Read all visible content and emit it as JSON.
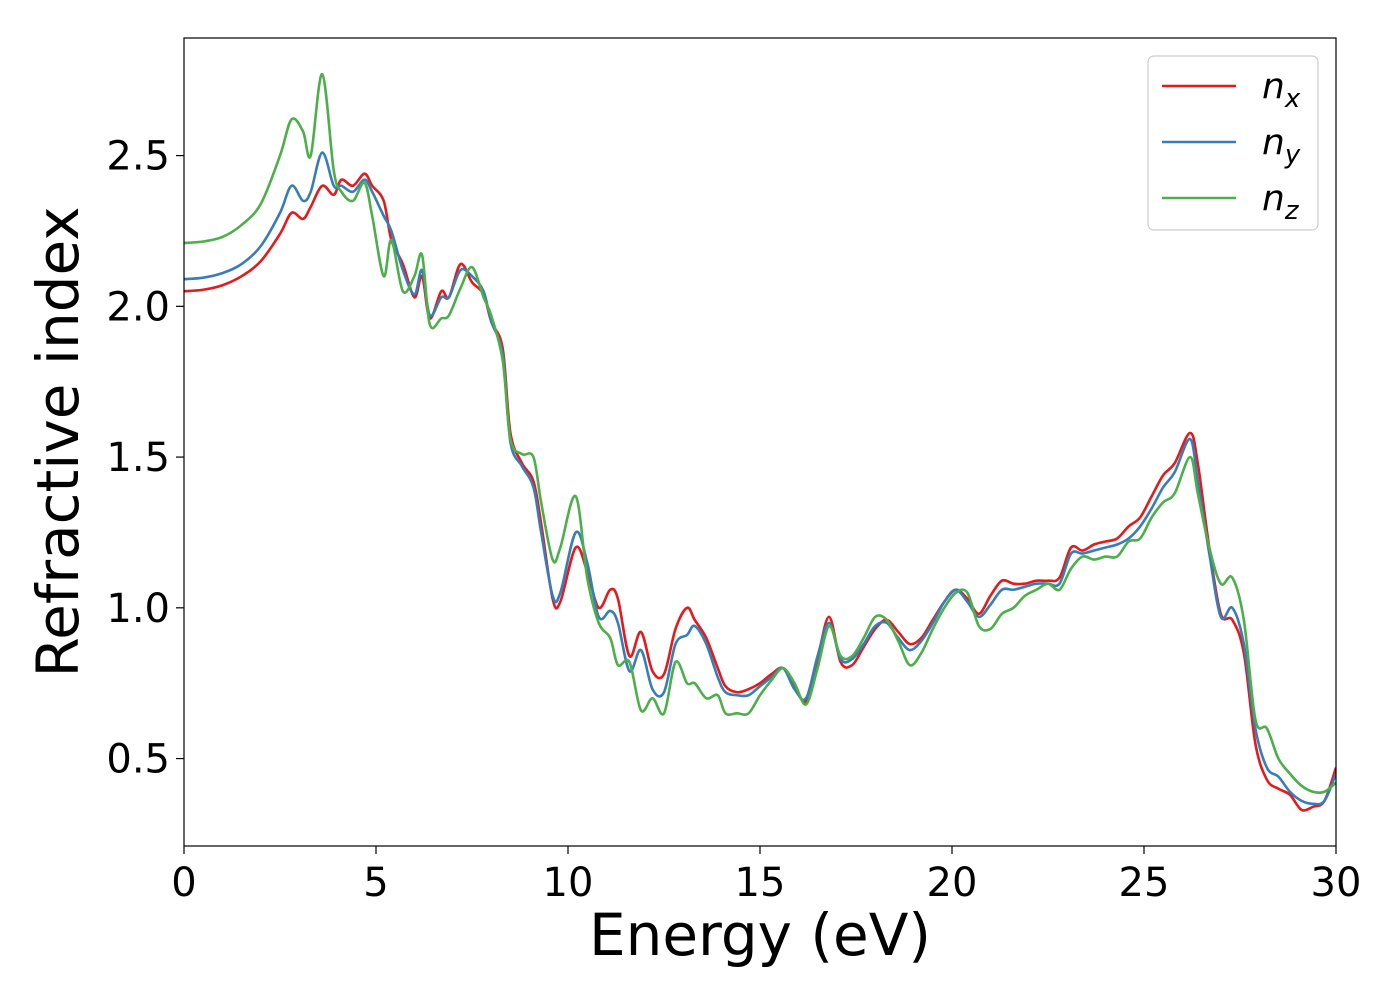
{
  "chart_data": {
    "type": "line",
    "title": "",
    "xlabel": "Energy (eV)",
    "ylabel": "Refractive index",
    "xlim": [
      0,
      30
    ],
    "ylim": [
      0.21,
      2.89
    ],
    "xticks": [
      0,
      5,
      10,
      15,
      20,
      25,
      30
    ],
    "yticks": [
      0.5,
      1.0,
      1.5,
      2.0,
      2.5
    ],
    "xtick_labels": [
      "0",
      "5",
      "10",
      "15",
      "20",
      "25",
      "30"
    ],
    "ytick_labels": [
      "0.5",
      "1.0",
      "1.5",
      "2.0",
      "2.5"
    ],
    "grid": false,
    "legend_position": "top-right",
    "series": [
      {
        "name": "n",
        "subscript": "x",
        "color": "#e41a1c",
        "x": [
          0,
          0.5,
          1,
          1.5,
          2,
          2.5,
          2.8,
          3.1,
          3.3,
          3.6,
          3.9,
          4.1,
          4.4,
          4.7,
          4.9,
          5.2,
          5.4,
          5.7,
          6,
          6.2,
          6.4,
          6.7,
          6.9,
          7.2,
          7.5,
          7.8,
          8,
          8.3,
          8.5,
          8.8,
          9.1,
          9.3,
          9.6,
          9.8,
          10.2,
          10.5,
          10.8,
          11.1,
          11.3,
          11.6,
          11.9,
          12.2,
          12.5,
          12.8,
          13.1,
          13.3,
          13.6,
          13.9,
          14.1,
          14.4,
          14.7,
          15,
          15.3,
          15.6,
          15.9,
          16.2,
          16.5,
          16.8,
          17.1,
          17.4,
          17.7,
          18,
          18.3,
          18.6,
          18.9,
          19.2,
          19.5,
          19.8,
          20.1,
          20.4,
          20.7,
          21,
          21.3,
          21.6,
          21.9,
          22.2,
          22.5,
          22.8,
          23.1,
          23.4,
          23.7,
          24,
          24.3,
          24.6,
          24.9,
          25.2,
          25.5,
          25.8,
          26.2,
          26.4,
          26.7,
          27,
          27.3,
          27.6,
          27.9,
          28.2,
          28.5,
          28.8,
          29.1,
          29.4,
          29.7,
          30
        ],
        "y": [
          2.05,
          2.055,
          2.07,
          2.1,
          2.15,
          2.24,
          2.31,
          2.29,
          2.33,
          2.4,
          2.37,
          2.42,
          2.4,
          2.44,
          2.4,
          2.35,
          2.22,
          2.14,
          2.03,
          2.1,
          1.96,
          2.05,
          2.03,
          2.14,
          2.08,
          2.04,
          1.95,
          1.86,
          1.58,
          1.48,
          1.42,
          1.28,
          1.03,
          1.02,
          1.2,
          1.12,
          1.0,
          1.06,
          1.03,
          0.84,
          0.92,
          0.79,
          0.78,
          0.93,
          1.0,
          0.96,
          0.9,
          0.8,
          0.74,
          0.72,
          0.73,
          0.75,
          0.78,
          0.8,
          0.74,
          0.69,
          0.83,
          0.97,
          0.82,
          0.81,
          0.87,
          0.93,
          0.96,
          0.92,
          0.88,
          0.9,
          0.96,
          1.02,
          1.06,
          1.03,
          0.98,
          1.04,
          1.09,
          1.08,
          1.08,
          1.09,
          1.09,
          1.1,
          1.2,
          1.19,
          1.21,
          1.22,
          1.23,
          1.27,
          1.3,
          1.37,
          1.44,
          1.48,
          1.58,
          1.48,
          1.2,
          0.98,
          0.96,
          0.85,
          0.55,
          0.43,
          0.4,
          0.38,
          0.33,
          0.34,
          0.36,
          0.47
        ]
      },
      {
        "name": "n",
        "subscript": "y",
        "color": "#377eb8",
        "x": [
          0,
          0.5,
          1,
          1.5,
          2,
          2.5,
          2.8,
          3.1,
          3.3,
          3.6,
          3.9,
          4.1,
          4.4,
          4.7,
          4.9,
          5.2,
          5.4,
          5.7,
          6,
          6.2,
          6.4,
          6.7,
          6.9,
          7.2,
          7.5,
          7.8,
          8,
          8.3,
          8.5,
          8.8,
          9.1,
          9.3,
          9.6,
          9.8,
          10.2,
          10.5,
          10.8,
          11.1,
          11.3,
          11.6,
          11.9,
          12.2,
          12.5,
          12.8,
          13.1,
          13.3,
          13.6,
          13.9,
          14.1,
          14.4,
          14.7,
          15,
          15.3,
          15.6,
          15.9,
          16.2,
          16.5,
          16.8,
          17.1,
          17.4,
          17.7,
          18,
          18.3,
          18.6,
          18.9,
          19.2,
          19.5,
          19.8,
          20.1,
          20.4,
          20.7,
          21,
          21.3,
          21.6,
          21.9,
          22.2,
          22.5,
          22.8,
          23.1,
          23.4,
          23.7,
          24,
          24.3,
          24.6,
          24.9,
          25.2,
          25.5,
          25.8,
          26.2,
          26.4,
          26.7,
          27,
          27.3,
          27.6,
          27.9,
          28.2,
          28.5,
          28.8,
          29.1,
          29.4,
          29.7,
          30
        ],
        "y": [
          2.09,
          2.095,
          2.11,
          2.14,
          2.2,
          2.31,
          2.4,
          2.35,
          2.38,
          2.51,
          2.4,
          2.4,
          2.38,
          2.42,
          2.38,
          2.3,
          2.25,
          2.12,
          2.04,
          2.12,
          1.97,
          2.03,
          2.03,
          2.12,
          2.1,
          2.05,
          1.95,
          1.84,
          1.55,
          1.47,
          1.4,
          1.25,
          1.04,
          1.05,
          1.25,
          1.15,
          0.97,
          0.99,
          0.95,
          0.79,
          0.86,
          0.73,
          0.72,
          0.88,
          0.91,
          0.94,
          0.88,
          0.77,
          0.72,
          0.71,
          0.71,
          0.74,
          0.77,
          0.8,
          0.73,
          0.7,
          0.84,
          0.95,
          0.83,
          0.83,
          0.88,
          0.94,
          0.95,
          0.9,
          0.86,
          0.89,
          0.95,
          1.02,
          1.06,
          1.02,
          0.97,
          1.01,
          1.06,
          1.06,
          1.07,
          1.08,
          1.08,
          1.08,
          1.18,
          1.18,
          1.19,
          1.2,
          1.21,
          1.23,
          1.27,
          1.33,
          1.4,
          1.45,
          1.56,
          1.42,
          1.18,
          0.97,
          1.0,
          0.88,
          0.6,
          0.47,
          0.44,
          0.39,
          0.36,
          0.35,
          0.36,
          0.45
        ]
      },
      {
        "name": "n",
        "subscript": "z",
        "color": "#4daf4a",
        "x": [
          0,
          0.5,
          1,
          1.5,
          2,
          2.5,
          2.8,
          3.1,
          3.3,
          3.6,
          3.9,
          4.1,
          4.4,
          4.7,
          4.9,
          5.2,
          5.4,
          5.7,
          6,
          6.2,
          6.4,
          6.7,
          6.9,
          7.2,
          7.5,
          7.8,
          8,
          8.3,
          8.5,
          8.8,
          9.1,
          9.3,
          9.6,
          9.8,
          10.2,
          10.5,
          10.8,
          11.1,
          11.3,
          11.6,
          11.9,
          12.2,
          12.5,
          12.8,
          13.1,
          13.3,
          13.6,
          13.9,
          14.1,
          14.4,
          14.7,
          15,
          15.3,
          15.6,
          15.9,
          16.2,
          16.5,
          16.8,
          17.1,
          17.4,
          17.7,
          18,
          18.3,
          18.6,
          18.9,
          19.2,
          19.5,
          19.8,
          20.1,
          20.4,
          20.7,
          21,
          21.3,
          21.6,
          21.9,
          22.2,
          22.5,
          22.8,
          23.1,
          23.4,
          23.7,
          24,
          24.3,
          24.6,
          24.9,
          25.2,
          25.5,
          25.8,
          26.2,
          26.4,
          26.7,
          27,
          27.3,
          27.6,
          27.9,
          28.2,
          28.5,
          28.8,
          29.1,
          29.4,
          29.7,
          30
        ],
        "y": [
          2.21,
          2.215,
          2.23,
          2.27,
          2.34,
          2.5,
          2.62,
          2.58,
          2.5,
          2.77,
          2.45,
          2.38,
          2.35,
          2.41,
          2.3,
          2.1,
          2.22,
          2.05,
          2.1,
          2.17,
          1.94,
          1.96,
          1.97,
          2.06,
          2.13,
          2.03,
          1.97,
          1.82,
          1.56,
          1.51,
          1.5,
          1.35,
          1.16,
          1.2,
          1.37,
          1.1,
          0.95,
          0.9,
          0.81,
          0.82,
          0.66,
          0.7,
          0.65,
          0.82,
          0.75,
          0.75,
          0.7,
          0.71,
          0.65,
          0.65,
          0.65,
          0.71,
          0.76,
          0.8,
          0.75,
          0.68,
          0.8,
          0.94,
          0.84,
          0.84,
          0.9,
          0.97,
          0.96,
          0.89,
          0.81,
          0.85,
          0.93,
          1.0,
          1.05,
          1.05,
          0.94,
          0.93,
          0.98,
          1.0,
          1.04,
          1.06,
          1.08,
          1.06,
          1.13,
          1.17,
          1.16,
          1.17,
          1.17,
          1.22,
          1.23,
          1.3,
          1.35,
          1.38,
          1.5,
          1.38,
          1.2,
          1.08,
          1.1,
          0.96,
          0.63,
          0.6,
          0.5,
          0.45,
          0.41,
          0.39,
          0.39,
          0.42
        ]
      }
    ]
  }
}
